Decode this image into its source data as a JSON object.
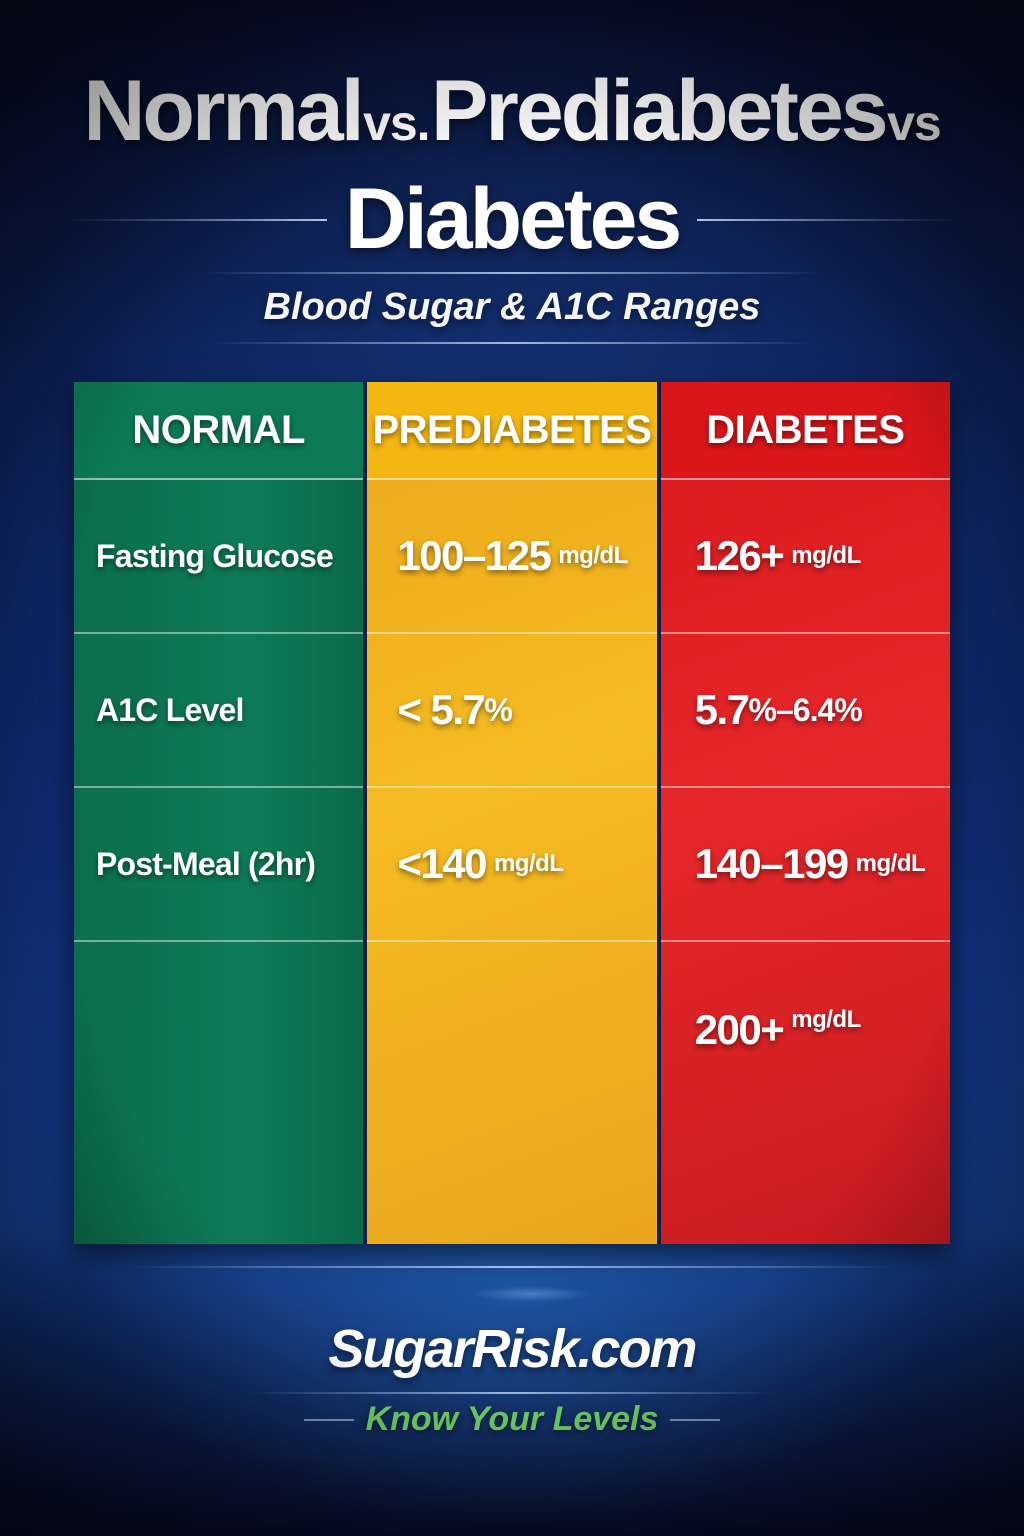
{
  "header": {
    "title_parts": [
      "Normal",
      "vs.",
      "Prediabetes",
      "vs",
      "Diabetes"
    ],
    "subtitle": "Blood Sugar & A1C Ranges"
  },
  "table": {
    "columns": [
      {
        "key": "normal",
        "label": "NORMAL",
        "color": "#0d7a55"
      },
      {
        "key": "prediabetes",
        "label": "PREDIABETES",
        "color": "#f4b612"
      },
      {
        "key": "diabetes",
        "label": "DIABETES",
        "color": "#da161b"
      }
    ],
    "rows": [
      {
        "normal": "Fasting Glucose",
        "prediabetes": {
          "value": "100–125",
          "unit": "mg/dL"
        },
        "diabetes": {
          "value": "126+",
          "unit": "mg/dL"
        }
      },
      {
        "normal": "A1C Level",
        "prediabetes": {
          "value": "< 5.7",
          "unit": "%"
        },
        "diabetes": {
          "value": "5.7",
          "unit": "%–6.4%"
        }
      },
      {
        "normal": "Post-Meal (2hr)",
        "prediabetes": {
          "value": "<140",
          "unit": "mg/dL"
        },
        "diabetes": {
          "value": "140–199",
          "unit": "mg/dL"
        }
      },
      {
        "normal": "",
        "prediabetes": {
          "value": "",
          "unit": ""
        },
        "diabetes": {
          "value": "200+",
          "unit": "mg/dL"
        }
      }
    ]
  },
  "footer": {
    "brand": "SugarRisk.com",
    "tagline": "Know Your Levels",
    "tagline_color": "#6ed267"
  }
}
